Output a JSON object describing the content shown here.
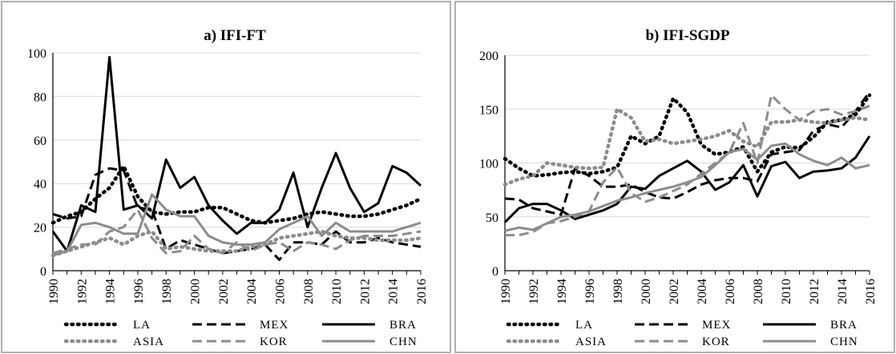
{
  "chart_data": [
    {
      "type": "line",
      "title": "a) IFI-FT",
      "xlabel": "",
      "ylabel": "",
      "ylim": [
        0,
        100
      ],
      "yticks": [
        "0",
        "20",
        "40",
        "60",
        "80",
        "100"
      ],
      "xticks": [
        "1990",
        "1992",
        "1994",
        "1996",
        "1998",
        "2000",
        "2002",
        "2004",
        "2006",
        "2008",
        "2010",
        "2012",
        "2014",
        "2016"
      ],
      "x": [
        1990,
        1991,
        1992,
        1993,
        1994,
        1995,
        1996,
        1997,
        1998,
        1999,
        2000,
        2001,
        2002,
        2003,
        2004,
        2005,
        2006,
        2007,
        2008,
        2009,
        2010,
        2011,
        2012,
        2013,
        2014,
        2015,
        2016
      ],
      "grid": "horizontal",
      "legend": "bottom",
      "series": [
        {
          "name": "LA",
          "color": "#000000",
          "dash": "dotted",
          "values": [
            22,
            25,
            27,
            33,
            38,
            48,
            34,
            27,
            26,
            27,
            27,
            29,
            29,
            26,
            23,
            22,
            23,
            24,
            26,
            27,
            26,
            25,
            25,
            26,
            28,
            30,
            33
          ]
        },
        {
          "name": "MEX",
          "color": "#000000",
          "dash": "dashed",
          "values": [
            26,
            24,
            25,
            44,
            47,
            46,
            29,
            28,
            10,
            14,
            12,
            10,
            8,
            9,
            10,
            12,
            5,
            13,
            13,
            12,
            18,
            13,
            13,
            15,
            13,
            12,
            11
          ]
        },
        {
          "name": "BRA",
          "color": "#000000",
          "dash": "solid",
          "values": [
            18,
            9,
            30,
            27,
            98,
            28,
            30,
            24,
            51,
            38,
            43,
            30,
            23,
            17,
            22,
            22,
            28,
            45,
            20,
            38,
            54,
            38,
            27,
            31,
            48,
            45,
            39
          ]
        },
        {
          "name": "ASIA",
          "color": "#8c8c8c",
          "dash": "dotted",
          "values": [
            7,
            9,
            11,
            13,
            15,
            12,
            16,
            18,
            10,
            11,
            10,
            9,
            9,
            9,
            11,
            12,
            15,
            16,
            17,
            18,
            16,
            15,
            15,
            14,
            14,
            14,
            15
          ]
        },
        {
          "name": "KOR",
          "color": "#8c8c8c",
          "dash": "dashed",
          "values": [
            8,
            10,
            12,
            12,
            18,
            20,
            28,
            15,
            8,
            9,
            16,
            10,
            8,
            13,
            9,
            12,
            13,
            9,
            13,
            12,
            10,
            14,
            16,
            16,
            16,
            17,
            18
          ]
        },
        {
          "name": "CHN",
          "color": "#8c8c8c",
          "dash": "solid",
          "values": [
            7,
            9,
            21,
            22,
            20,
            17,
            17,
            35,
            28,
            25,
            25,
            16,
            13,
            12,
            12,
            13,
            19,
            22,
            25,
            16,
            22,
            18,
            18,
            18,
            18,
            20,
            22
          ]
        }
      ]
    },
    {
      "type": "line",
      "title": "b) IFI-SGDP",
      "xlabel": "",
      "ylabel": "",
      "ylim": [
        0,
        200
      ],
      "yticks": [
        "0",
        "50",
        "100",
        "150",
        "200"
      ],
      "xticks": [
        "1990",
        "1992",
        "1994",
        "1996",
        "1998",
        "2000",
        "2002",
        "2004",
        "2006",
        "2008",
        "2010",
        "2012",
        "2014",
        "2016"
      ],
      "x": [
        1990,
        1991,
        1992,
        1993,
        1994,
        1995,
        1996,
        1997,
        1998,
        1999,
        2000,
        2001,
        2002,
        2003,
        2004,
        2005,
        2006,
        2007,
        2008,
        2009,
        2010,
        2011,
        2012,
        2013,
        2014,
        2015,
        2016
      ],
      "grid": "horizontal",
      "legend": "bottom",
      "series": [
        {
          "name": "LA",
          "color": "#000000",
          "dash": "dotted",
          "values": [
            104,
            95,
            88,
            89,
            91,
            92,
            90,
            92,
            96,
            125,
            118,
            125,
            160,
            147,
            117,
            108,
            110,
            115,
            92,
            110,
            115,
            114,
            124,
            138,
            140,
            145,
            163
          ]
        },
        {
          "name": "MEX",
          "color": "#000000",
          "dash": "dashed",
          "values": [
            67,
            66,
            58,
            55,
            52,
            95,
            88,
            78,
            78,
            80,
            73,
            68,
            67,
            73,
            80,
            84,
            86,
            86,
            83,
            108,
            110,
            112,
            130,
            136,
            133,
            148,
            166
          ]
        },
        {
          "name": "BRA",
          "color": "#000000",
          "dash": "solid",
          "values": [
            45,
            58,
            62,
            62,
            56,
            48,
            52,
            56,
            62,
            78,
            76,
            88,
            95,
            102,
            92,
            75,
            82,
            98,
            69,
            97,
            101,
            86,
            92,
            93,
            95,
            105,
            125
          ]
        },
        {
          "name": "ASIA",
          "color": "#8c8c8c",
          "dash": "dotted",
          "values": [
            80,
            85,
            88,
            100,
            98,
            96,
            95,
            96,
            150,
            142,
            120,
            122,
            118,
            120,
            122,
            125,
            130,
            120,
            115,
            138,
            138,
            140,
            138,
            137,
            140,
            142,
            140
          ]
        },
        {
          "name": "KOR",
          "color": "#8c8c8c",
          "dash": "dashed",
          "values": [
            33,
            33,
            36,
            44,
            46,
            50,
            55,
            82,
            96,
            72,
            64,
            68,
            74,
            80,
            90,
            100,
            110,
            137,
            100,
            163,
            150,
            140,
            148,
            150,
            145,
            148,
            153
          ]
        },
        {
          "name": "CHN",
          "color": "#8c8c8c",
          "dash": "solid",
          "values": [
            37,
            40,
            38,
            44,
            50,
            52,
            55,
            60,
            65,
            68,
            72,
            75,
            78,
            82,
            87,
            98,
            110,
            113,
            103,
            116,
            118,
            108,
            102,
            98,
            105,
            95,
            98
          ]
        }
      ]
    }
  ]
}
